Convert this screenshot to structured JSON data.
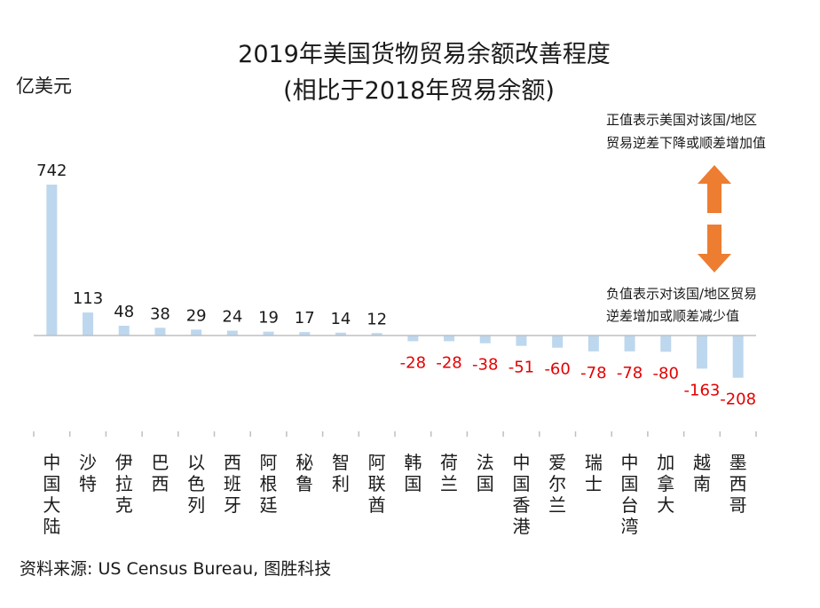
{
  "chart_data": {
    "type": "bar",
    "title": "2019年美国货物贸易余额改善程度",
    "subtitle": "(相比于2018年贸易余额)",
    "ylabel": "亿美元",
    "categories": [
      "中国大陆",
      "沙特",
      "伊拉克",
      "巴西",
      "以色列",
      "西班牙",
      "阿根廷",
      "秘鲁",
      "智利",
      "阿联酋",
      "韩国",
      "荷兰",
      "法国",
      "中国香港",
      "爱尔兰",
      "瑞士",
      "中国台湾",
      "加拿大",
      "越南",
      "墨西哥"
    ],
    "values": [
      742,
      113,
      48,
      38,
      29,
      24,
      19,
      17,
      14,
      12,
      -28,
      -28,
      -38,
      -51,
      -60,
      -78,
      -78,
      -80,
      -163,
      -208
    ],
    "ylim": [
      -750,
      770
    ],
    "grid": false,
    "legend": "none",
    "colors": {
      "bar": "#bdd7ee",
      "positive_label": "#1a1a1a",
      "negative_label": "#e60000",
      "arrow": "#ed7d31"
    }
  },
  "annotations": {
    "positive_note": [
      "正值表示美国对该国/地区",
      "贸易逆差下降或顺差增加值"
    ],
    "negative_note": [
      "负值表示对该国/地区贸易",
      "逆差增加或顺差减少值"
    ],
    "up_arrow_icon": "arrow-up-icon",
    "down_arrow_icon": "arrow-down-icon"
  },
  "source": "资料来源: US Census Bureau, 图胜科技"
}
